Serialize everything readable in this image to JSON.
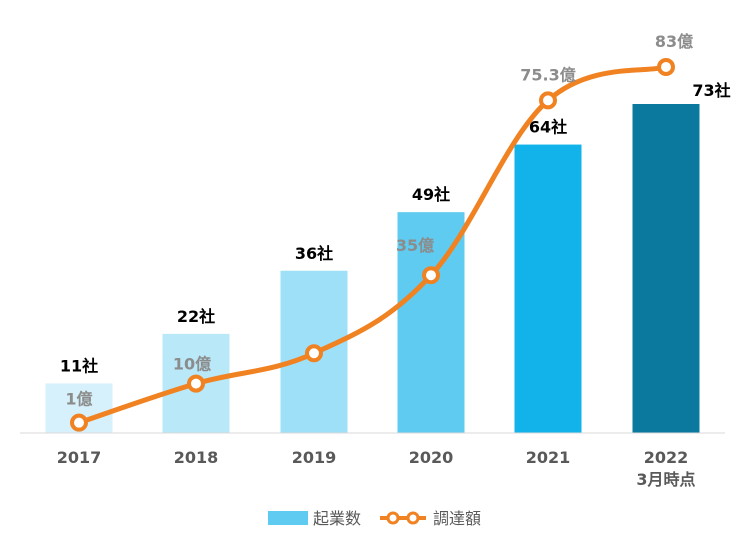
{
  "chart_data": {
    "type": "bar+line",
    "categories": [
      "2017",
      "2018",
      "2019",
      "2020",
      "2021",
      "2022"
    ],
    "category_sublabels": [
      "",
      "",
      "",
      "",
      "",
      "3月時点"
    ],
    "series": [
      {
        "name": "起業数",
        "type": "bar",
        "values": [
          11,
          22,
          36,
          49,
          64,
          73
        ],
        "labels": [
          "11社",
          "22社",
          "36社",
          "49社",
          "64社",
          "73社"
        ],
        "colors": [
          "#d6f1fb",
          "#b9e8f8",
          "#9ee0f7",
          "#5fcbf0",
          "#12b2ea",
          "#0b789e"
        ]
      },
      {
        "name": "調達額",
        "type": "line",
        "values": [
          1,
          10,
          17,
          35,
          75.3,
          83
        ],
        "labels": [
          "1億",
          "10億",
          "",
          "35億",
          "75.3億",
          "83億"
        ],
        "color": "#f08222"
      }
    ],
    "legend": {
      "position": "bottom",
      "items": [
        {
          "label": "起業数",
          "color": "#5fcbf0",
          "kind": "bar"
        },
        {
          "label": "調達額",
          "color": "#f08222",
          "kind": "line"
        }
      ]
    },
    "bar_axis": {
      "min": 0,
      "max": 90
    },
    "line_axis": {
      "min": 0,
      "max": 90
    }
  }
}
